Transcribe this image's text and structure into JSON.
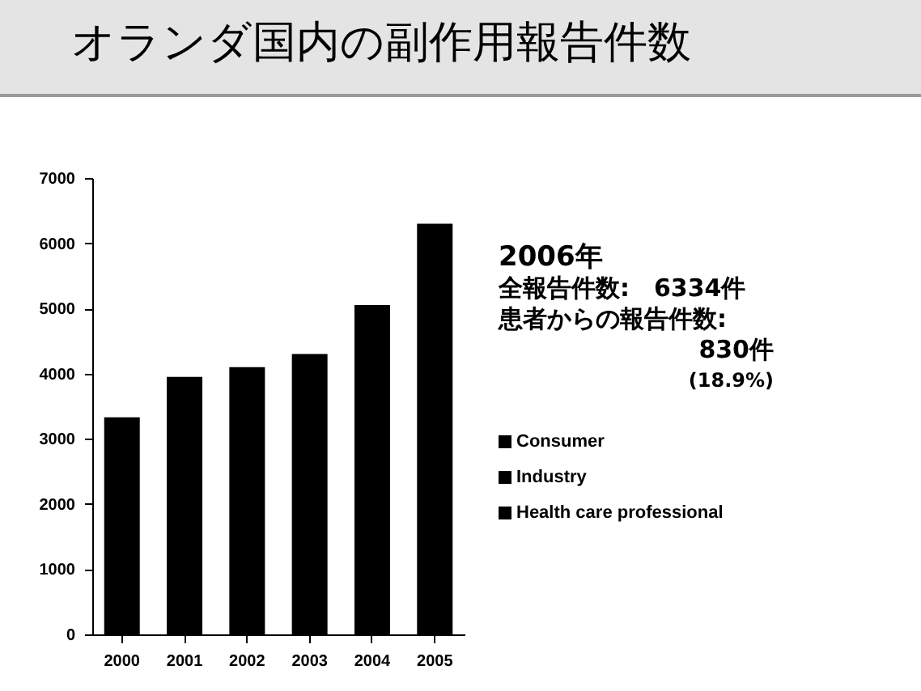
{
  "chart_data": {
    "type": "bar",
    "title": "オランダ国内の副作用報告件数",
    "categories": [
      "2000",
      "2001",
      "2002",
      "2003",
      "2004",
      "2005"
    ],
    "values": [
      3330,
      3950,
      4100,
      4300,
      5050,
      6300
    ],
    "color": "#000000",
    "ylim": [
      0,
      7000
    ],
    "yticks": [
      0,
      1000,
      2000,
      3000,
      4000,
      5000,
      6000,
      7000
    ],
    "grid": false,
    "annotations": [
      "2006年",
      "全報告件数:　6334件",
      "患者からの報告件数:",
      "830件",
      "(18.9%)",
      "Consumer",
      "Industry",
      "Health care professional"
    ]
  }
}
